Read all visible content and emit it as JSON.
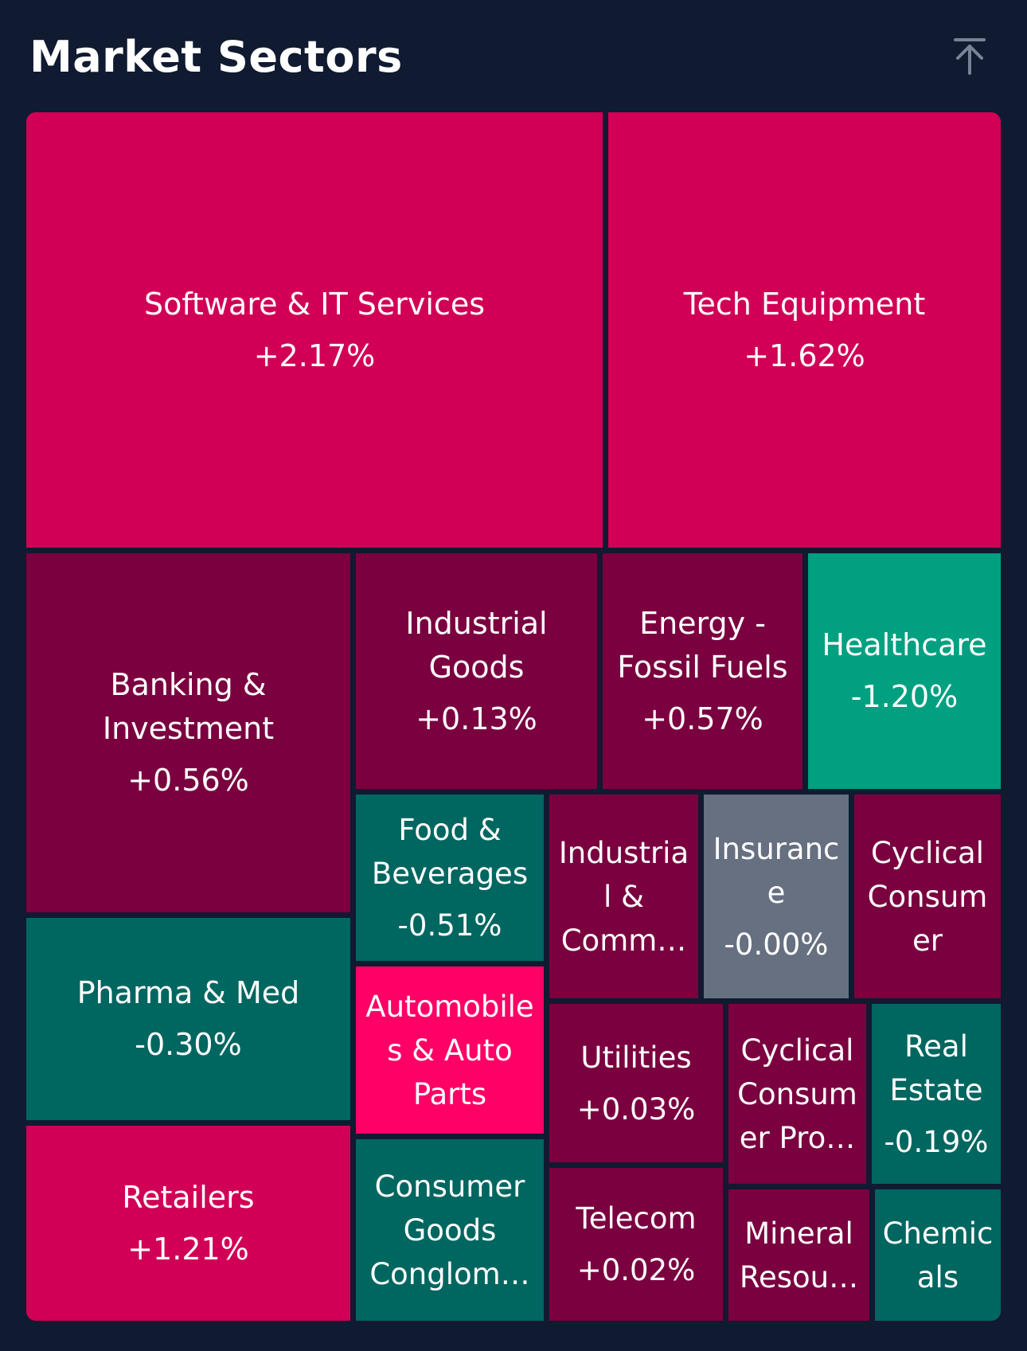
{
  "header": {
    "title": "Market Sectors",
    "collapse_icon": "arrow-up-to-line-icon"
  },
  "colors": {
    "background": "#101a30",
    "strong_up": "#d10056",
    "mild_up": "#7a003f",
    "hot_up": "#ff0066",
    "mild_down": "#006660",
    "strong_down": "#00a080",
    "flat": "#667080"
  },
  "sectors": [
    {
      "id": "software",
      "name": "Software & IT Services",
      "change": "+2.17%"
    },
    {
      "id": "tech-equipment",
      "name": "Tech Equipment",
      "change": "+1.62%"
    },
    {
      "id": "banking",
      "name": "Banking &\nInvestment",
      "change": "+0.56%"
    },
    {
      "id": "industrial-goods",
      "name": "Industrial\nGoods",
      "change": "+0.13%"
    },
    {
      "id": "energy",
      "name": "Energy -\nFossil Fuels",
      "change": "+0.57%"
    },
    {
      "id": "healthcare",
      "name": "Healthcare",
      "change": "-1.20%"
    },
    {
      "id": "food",
      "name": "Food &\nBeverages",
      "change": "-0.51%"
    },
    {
      "id": "industrial-comm",
      "name": "Industria\nl &\nComm…",
      "change": ""
    },
    {
      "id": "insurance",
      "name": "Insuranc\ne",
      "change": "-0.00%"
    },
    {
      "id": "cyclical-consumer",
      "name": "Cyclical\nConsum\ner",
      "change": ""
    },
    {
      "id": "pharma",
      "name": "Pharma & Med",
      "change": "-0.30%"
    },
    {
      "id": "automobiles",
      "name": "Automobile\ns & Auto\nParts",
      "change": ""
    },
    {
      "id": "utilities",
      "name": "Utilities",
      "change": "+0.03%"
    },
    {
      "id": "cyclical-consumer-pro",
      "name": "Cyclical\nConsum\ner Pro…",
      "change": ""
    },
    {
      "id": "real-estate",
      "name": "Real\nEstate",
      "change": "-0.19%"
    },
    {
      "id": "retailers",
      "name": "Retailers",
      "change": "+1.21%"
    },
    {
      "id": "consumer-goods",
      "name": "Consumer\nGoods\nConglom…",
      "change": ""
    },
    {
      "id": "telecom",
      "name": "Telecom",
      "change": "+0.02%"
    },
    {
      "id": "mineral",
      "name": "Mineral\nResou…",
      "change": ""
    },
    {
      "id": "chemicals",
      "name": "Chemic\nals",
      "change": ""
    }
  ]
}
